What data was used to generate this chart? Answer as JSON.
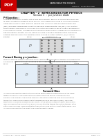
{
  "bg_color": "#ffffff",
  "header_bg": "#222222",
  "pdf_icon_color": "#cc0000",
  "body_text_color": "#111111",
  "text_gray": "#333333",
  "page_bg": "#ffffff"
}
